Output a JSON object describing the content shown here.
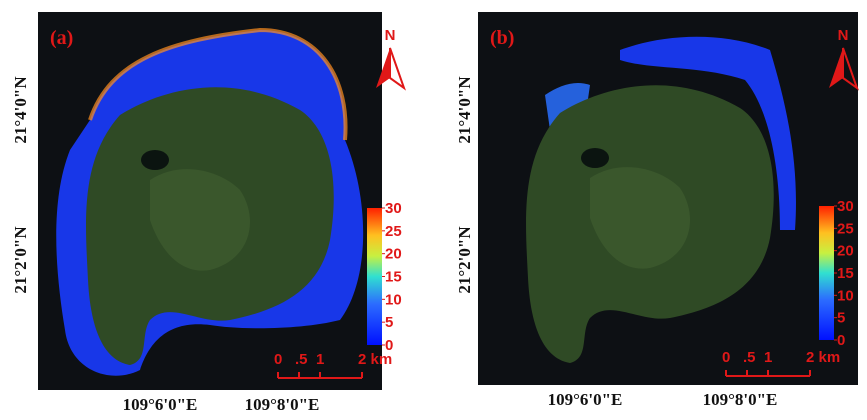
{
  "panels": [
    {
      "label": "(a)",
      "north": "N",
      "lat_labels": [
        "21°4'0\"N",
        "21°2'0\"N"
      ],
      "lon_labels": [
        "109°6'0\"E",
        "109°8'0\"E"
      ],
      "colorbar_ticks": [
        0,
        5,
        10,
        15,
        20,
        25,
        30
      ],
      "scale_labels": [
        "0",
        ".5",
        "1",
        "2 km"
      ]
    },
    {
      "label": "(b)",
      "north": "N",
      "lat_labels": [
        "21°4'0\"N",
        "21°2'0\"N"
      ],
      "lon_labels": [
        "109°6'0\"E",
        "109°8'0\"E"
      ],
      "colorbar_ticks": [
        0,
        5,
        10,
        15,
        20,
        25,
        30
      ],
      "scale_labels": [
        "0",
        ".5",
        "1",
        "2 km"
      ]
    }
  ]
}
